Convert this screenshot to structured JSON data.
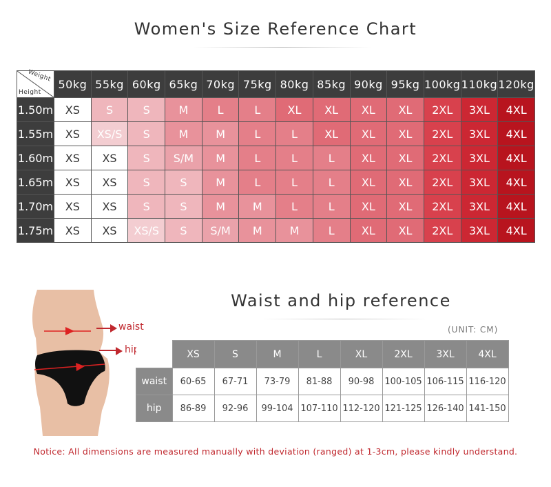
{
  "size_chart": {
    "title": "Women's Size Reference Chart",
    "corner": {
      "weight_label": "Weight",
      "height_label": "Height"
    },
    "weights": [
      "50kg",
      "55kg",
      "60kg",
      "65kg",
      "70kg",
      "75kg",
      "80kg",
      "85kg",
      "90kg",
      "95kg",
      "100kg",
      "110kg",
      "120kg"
    ],
    "rows": [
      {
        "height": "1.50m",
        "sizes": [
          "XS",
          "S",
          "S",
          "M",
          "L",
          "L",
          "XL",
          "XL",
          "XL",
          "XL",
          "2XL",
          "3XL",
          "4XL"
        ]
      },
      {
        "height": "1.55m",
        "sizes": [
          "XS",
          "XS/S",
          "S",
          "M",
          "M",
          "L",
          "L",
          "XL",
          "XL",
          "XL",
          "2XL",
          "3XL",
          "4XL"
        ]
      },
      {
        "height": "1.60m",
        "sizes": [
          "XS",
          "XS",
          "S",
          "S/M",
          "M",
          "L",
          "L",
          "L",
          "XL",
          "XL",
          "2XL",
          "3XL",
          "4XL"
        ]
      },
      {
        "height": "1.65m",
        "sizes": [
          "XS",
          "XS",
          "S",
          "S",
          "M",
          "L",
          "L",
          "L",
          "XL",
          "XL",
          "2XL",
          "3XL",
          "4XL"
        ]
      },
      {
        "height": "1.70m",
        "sizes": [
          "XS",
          "XS",
          "S",
          "S",
          "M",
          "M",
          "L",
          "L",
          "XL",
          "XL",
          "2XL",
          "3XL",
          "4XL"
        ]
      },
      {
        "height": "1.75m",
        "sizes": [
          "XS",
          "XS",
          "XS/S",
          "S",
          "S/M",
          "M",
          "M",
          "L",
          "XL",
          "XL",
          "2XL",
          "3XL",
          "4XL"
        ]
      }
    ],
    "size_colors": {
      "XS": "#ffffff",
      "XS/S": "#f3cdd1",
      "S": "#efb6bc",
      "S/M": "#eaa2aa",
      "M": "#e8929b",
      "L": "#e47f89",
      "XL": "#e06b76",
      "2XL": "#d8414d",
      "3XL": "#cc2733",
      "4XL": "#b8141e"
    }
  },
  "waist_hip": {
    "title": "Waist and hip reference",
    "unit": "(UNIT: CM)",
    "sizes": [
      "XS",
      "S",
      "M",
      "L",
      "XL",
      "2XL",
      "3XL",
      "4XL"
    ],
    "rows": [
      {
        "label": "waist",
        "values": [
          "60-65",
          "67-71",
          "73-79",
          "81-88",
          "90-98",
          "100-105",
          "106-115",
          "116-120"
        ]
      },
      {
        "label": "hip",
        "values": [
          "86-89",
          "92-96",
          "99-104",
          "107-110",
          "112-120",
          "121-125",
          "126-140",
          "141-150"
        ]
      }
    ],
    "figure_labels": {
      "waist": "waist",
      "hip": "hip"
    }
  },
  "notice": "Notice: All dimensions are measured manually with deviation (ranged) at 1-3cm, please kindly understand.",
  "colors": {
    "accent_red": "#c0282e",
    "header_dark": "#3d3d3d",
    "header_gray": "#8a8a8a"
  }
}
